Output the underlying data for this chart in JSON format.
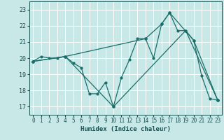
{
  "xlabel": "Humidex (Indice chaleur)",
  "bg_color": "#c8e8e8",
  "grid_color": "#ffffff",
  "line_color": "#1a6e6a",
  "xlim": [
    -0.5,
    23.5
  ],
  "ylim": [
    16.5,
    23.5
  ],
  "yticks": [
    17,
    18,
    19,
    20,
    21,
    22,
    23
  ],
  "xticks": [
    0,
    1,
    2,
    3,
    4,
    5,
    6,
    7,
    8,
    9,
    10,
    11,
    12,
    13,
    14,
    15,
    16,
    17,
    18,
    19,
    20,
    21,
    22,
    23
  ],
  "line1_x": [
    0,
    1,
    2,
    3,
    4,
    5,
    6,
    7,
    8,
    9,
    10,
    11,
    12,
    13,
    14,
    15,
    16,
    17,
    18,
    19,
    20,
    21,
    22,
    23
  ],
  "line1_y": [
    19.8,
    20.1,
    20.0,
    20.0,
    20.1,
    19.7,
    19.4,
    17.8,
    17.8,
    18.5,
    17.0,
    18.8,
    19.9,
    21.2,
    21.2,
    20.0,
    22.1,
    22.8,
    21.7,
    21.7,
    21.1,
    18.9,
    17.5,
    17.4
  ],
  "line2_x": [
    0,
    4,
    10,
    19,
    23
  ],
  "line2_y": [
    19.8,
    20.1,
    17.0,
    21.7,
    17.4
  ],
  "line3_x": [
    0,
    4,
    14,
    16,
    17,
    20,
    23
  ],
  "line3_y": [
    19.8,
    20.1,
    21.2,
    22.1,
    22.8,
    21.1,
    17.4
  ]
}
